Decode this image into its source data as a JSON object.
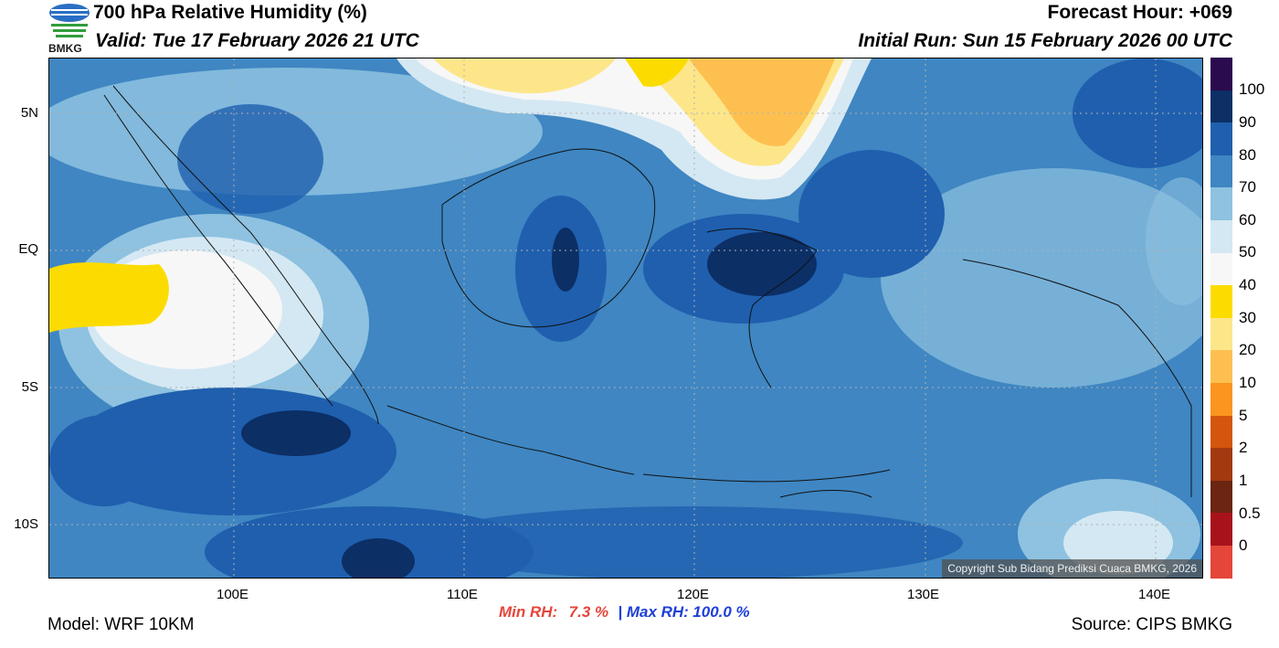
{
  "header": {
    "logo_text": "BMKG",
    "title": "700 hPa Relative Humidity (%)",
    "forecast_hour": "Forecast Hour: +069",
    "valid": "Valid: Tue 17 February 2026 21 UTC",
    "initial_run": "Initial Run: Sun 15 February 2026 00 UTC"
  },
  "map": {
    "lat_labels": [
      "5N",
      "EQ",
      "5S",
      "10S"
    ],
    "lon_labels": [
      "100E",
      "110E",
      "120E",
      "130E",
      "140E"
    ],
    "lon_range": [
      92,
      142
    ],
    "lat_range": [
      -12,
      7
    ],
    "copyright": "Copyright Sub Bidang Prediksi Cuaca BMKG, 2026"
  },
  "colorbar": {
    "labels": [
      "100",
      "90",
      "80",
      "70",
      "60",
      "50",
      "40",
      "30",
      "20",
      "10",
      "5",
      "2",
      "1",
      "0.5",
      "0"
    ],
    "colors": [
      "#2b0a4e",
      "#0c2f66",
      "#1f5fae",
      "#3f86c2",
      "#8ec2e0",
      "#d4e8f3",
      "#f7f7f7",
      "#fcdc00",
      "#fde68a",
      "#fdc050",
      "#fb951f",
      "#d4560c",
      "#a33a0f",
      "#6b2510",
      "#a8121b",
      "#e4463a"
    ]
  },
  "stats": {
    "min_label": "Min RH:",
    "min_value": "7.3 %",
    "separator": "|",
    "max_label": "Max RH:",
    "max_value": "100.0 %"
  },
  "footer": {
    "model": "Model: WRF 10KM",
    "source": "Source: CIPS BMKG"
  }
}
